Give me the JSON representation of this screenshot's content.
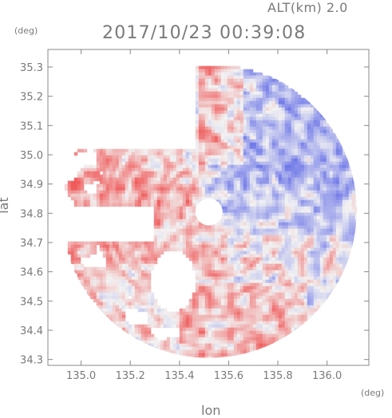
{
  "header": {
    "altitude": "ALT(km) 2.0",
    "timestamp": "2017/10/23 00:39:08"
  },
  "chart_data": {
    "type": "heatmap",
    "title": "2017/10/23 00:39:08",
    "subtitle": "ALT(km) 2.0",
    "xlabel": "lon",
    "ylabel": "lat",
    "x_unit": "(deg)",
    "y_unit": "(deg)",
    "xlim": [
      134.865,
      136.17
    ],
    "ylim": [
      34.28,
      35.36
    ],
    "x_ticks": [
      "135.0",
      "135.2",
      "135.4",
      "135.6",
      "135.8",
      "136.0"
    ],
    "y_ticks": [
      "34.3",
      "34.4",
      "34.5",
      "34.6",
      "34.7",
      "34.8",
      "34.9",
      "35.0",
      "35.1",
      "35.2",
      "35.3"
    ],
    "radar_center": {
      "lon": 135.52,
      "lat": 34.81
    },
    "colormap": {
      "negative": "#6f78e8",
      "zero": "#f2f2f2",
      "positive": "#f05a5a"
    },
    "grid": false
  }
}
